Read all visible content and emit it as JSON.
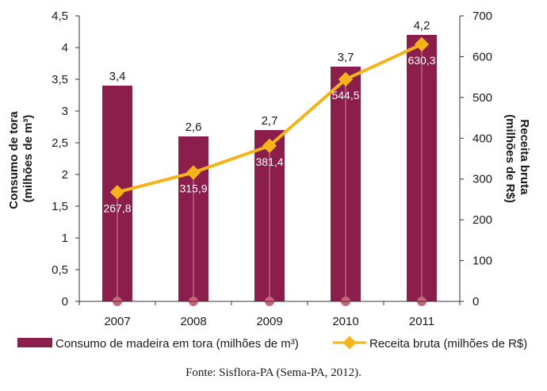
{
  "chart_data": {
    "type": "bar+line",
    "categories": [
      "2007",
      "2008",
      "2009",
      "2010",
      "2011"
    ],
    "series": [
      {
        "name": "Consumo de madeira em tora (milhões de m³)",
        "kind": "bar",
        "axis": "left",
        "values": [
          3.4,
          2.6,
          2.7,
          3.7,
          4.2
        ],
        "labels": [
          "3,4",
          "2,6",
          "2,7",
          "3,7",
          "4,2"
        ],
        "color": "#8b1e4b"
      },
      {
        "name": "Receita bruta (milhões de R$)",
        "kind": "line",
        "axis": "right",
        "values": [
          267.8,
          315.9,
          381.4,
          544.5,
          630.3
        ],
        "labels": [
          "267,8",
          "315,9",
          "381,4",
          "544,5",
          "630,3"
        ],
        "color": "#f5b31a"
      }
    ],
    "y_left": {
      "title_line1": "Consumo de tora",
      "title_line2": "(milhões de m³)",
      "ylim": [
        0,
        4.5
      ],
      "ticks": [
        0,
        0.5,
        1,
        1.5,
        2,
        2.5,
        3,
        3.5,
        4,
        4.5
      ],
      "tick_labels": [
        "0",
        "0,5",
        "1",
        "1,5",
        "2",
        "2,5",
        "3",
        "3,5",
        "4",
        "4,5"
      ]
    },
    "y_right": {
      "title_line1": "Receita bruta",
      "title_line2": "(milhões de R$)",
      "ylim": [
        0,
        700
      ],
      "ticks": [
        0,
        100,
        200,
        300,
        400,
        500,
        600,
        700
      ],
      "tick_labels": [
        "0",
        "100",
        "200",
        "300",
        "400",
        "500",
        "600",
        "700"
      ]
    },
    "grid": false,
    "legend": "bottom"
  },
  "source": "Fonte: Sisflora-PA (Sema-PA, 2012)."
}
